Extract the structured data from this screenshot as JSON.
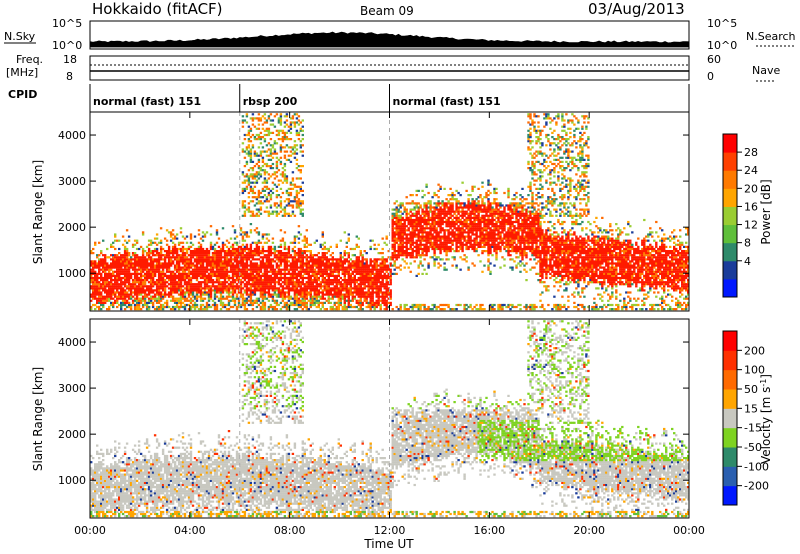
{
  "header": {
    "station": "Hokkaido (fitACF)",
    "beam": "Beam 09",
    "date": "03/Aug/2013"
  },
  "top_panels": {
    "nsky_label": "N.Sky",
    "nsky_ticks": [
      "10^5",
      "10^0"
    ],
    "nsearch_label": "N.Search",
    "nsearch_ticks": [
      "10^5",
      "10^0"
    ],
    "freq_label_1": "Freq.",
    "freq_label_2": "[MHz]",
    "freq_ticks": [
      "18",
      "8"
    ],
    "nave_label": "Nave",
    "nave_ticks": [
      "60",
      "0"
    ],
    "cpid_label": "CPID",
    "cpid_segments": [
      {
        "label": "normal (fast) 151",
        "start_hour": 0
      },
      {
        "label": "rbsp 200",
        "start_hour": 6
      },
      {
        "label": "normal (fast) 151",
        "start_hour": 12
      }
    ]
  },
  "chart_data": [
    {
      "type": "heatmap",
      "name": "power",
      "ylabel": "Slant Range [km]",
      "ylim": [
        180,
        4500
      ],
      "yticks": [
        "1000",
        "2000",
        "3000",
        "4000"
      ],
      "colorbar_label": "Power [dB]",
      "colorbar_ticks": [
        "28",
        "24",
        "20",
        "16",
        "12",
        "8",
        "4"
      ],
      "colors": [
        "#0018ff",
        "#1a3c9a",
        "#2e8a6a",
        "#5fbf3a",
        "#9acd32",
        "#ffa500",
        "#ff7a00",
        "#ff4000",
        "#ff0000"
      ]
    },
    {
      "type": "heatmap",
      "name": "velocity",
      "ylabel": "Slant Range [km]",
      "ylim": [
        180,
        4500
      ],
      "yticks": [
        "1000",
        "2000",
        "3000",
        "4000"
      ],
      "colorbar_label": "Velocity [m s",
      "colorbar_unit_sup": "-1",
      "colorbar_unit_close": "]",
      "colorbar_ticks": [
        "200",
        "100",
        "50",
        "15",
        "-15",
        "-50",
        "-100",
        "-200"
      ],
      "colors": [
        "#0018ff",
        "#2a5fb0",
        "#2e8a6a",
        "#7ed321",
        "#c8c8c0",
        "#ffa500",
        "#ff6a00",
        "#ff3000",
        "#ff0000"
      ]
    }
  ],
  "xaxis": {
    "label": "Time UT",
    "ticks": [
      "00:00",
      "04:00",
      "08:00",
      "12:00",
      "16:00",
      "20:00",
      "00:00"
    ]
  }
}
